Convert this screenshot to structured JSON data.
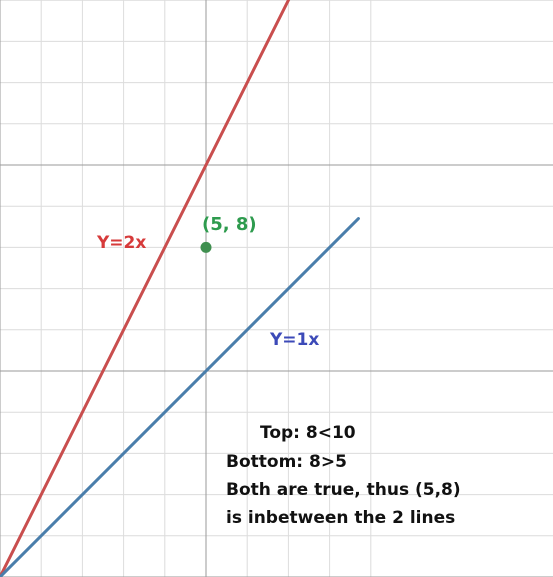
{
  "chart_data": {
    "type": "line",
    "title": "",
    "xlabel": "",
    "ylabel": "",
    "xlim": [
      0,
      8.7
    ],
    "ylim": [
      0,
      14.1
    ],
    "grid": true,
    "grid_minor_step": 1,
    "grid_major_step": 5,
    "series": [
      {
        "name": "Y=2x",
        "color": "#c94e4e",
        "x": [
          0,
          7.05
        ],
        "y": [
          0,
          14.1
        ]
      },
      {
        "name": "Y=1x",
        "color": "#4a7eab",
        "x": [
          0,
          8.7
        ],
        "y": [
          0,
          8.7
        ]
      }
    ],
    "points": [
      {
        "label": "(5, 8)",
        "x": 5,
        "y": 8,
        "color": "#3f8f4f"
      }
    ],
    "annotations": {
      "lines": [
        "Top: 8<10",
        "Bottom: 8>5",
        "Both are true, thus (5,8)",
        "is inbetween the 2 lines"
      ],
      "color": "#111111"
    },
    "label_colors": {
      "y2x": "#d63a3a",
      "y1x": "#3c4ab8",
      "point": "#2e9b4e"
    }
  }
}
